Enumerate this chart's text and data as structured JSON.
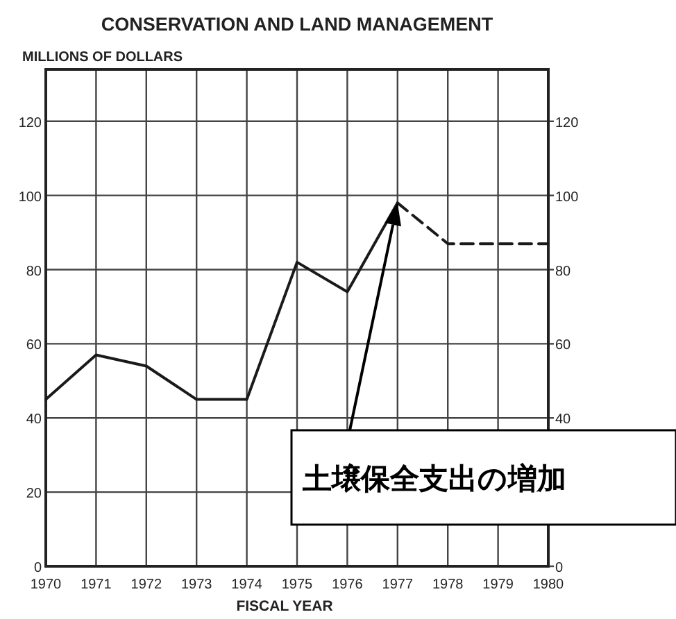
{
  "chart_data": {
    "type": "line",
    "title": "CONSERVATION AND LAND MANAGEMENT",
    "ylabel": "MILLIONS OF DOLLARS",
    "xlabel": "FISCAL YEAR",
    "x": [
      1970,
      1971,
      1972,
      1973,
      1974,
      1975,
      1976,
      1977,
      1978,
      1979,
      1980
    ],
    "series": [
      {
        "color": "#1a1a1a",
        "line_style": "solid",
        "values": [
          45,
          57,
          54,
          45,
          45,
          82,
          74,
          98,
          null,
          null,
          null
        ]
      },
      {
        "color": "#1a1a1a",
        "line_style": "dashed",
        "values": [
          null,
          null,
          null,
          null,
          null,
          null,
          null,
          98,
          87,
          87,
          87
        ]
      }
    ],
    "xlim": [
      1970,
      1980
    ],
    "xticks": [
      1970,
      1971,
      1972,
      1973,
      1974,
      1975,
      1976,
      1977,
      1978,
      1979,
      1980
    ],
    "ylim": [
      0,
      134
    ],
    "yticks": [
      0,
      20,
      40,
      60,
      80,
      100,
      120
    ],
    "y2lim": [
      0,
      134
    ],
    "y2ticks": [
      0,
      40,
      60,
      80,
      100,
      120
    ],
    "grid": true,
    "marker": "none",
    "annotations": [
      "土壌保全支出の増加"
    ]
  }
}
